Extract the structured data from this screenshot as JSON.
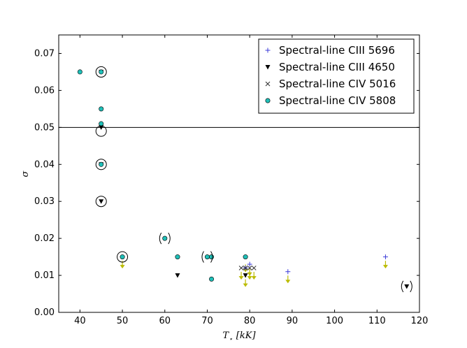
{
  "chart_data": {
    "type": "scatter",
    "xlabel": "T",
    "xlabel_sub": "⋆",
    "xlabel_unit": "[kK]",
    "ylabel": "σ",
    "xlim": [
      35,
      120
    ],
    "ylim": [
      0.0,
      0.075
    ],
    "x_ticks": [
      40,
      50,
      60,
      70,
      80,
      90,
      100,
      110,
      120
    ],
    "y_ticks": [
      0.0,
      0.01,
      0.02,
      0.03,
      0.04,
      0.05,
      0.06,
      0.07
    ],
    "x_tick_labels": [
      "40",
      "50",
      "60",
      "70",
      "80",
      "90",
      "100",
      "110",
      "120"
    ],
    "y_tick_labels": [
      "0.00",
      "0.01",
      "0.02",
      "0.03",
      "0.04",
      "0.05",
      "0.06",
      "0.07"
    ],
    "grid": false,
    "legend_position": "top-right",
    "reference_line": {
      "y": 0.05,
      "color": "#000000"
    },
    "series": [
      {
        "name": "Spectral-line CIII 5696",
        "marker": "plus",
        "color": "#3b3bd8",
        "points": [
          {
            "x": 79,
            "y": 0.012
          },
          {
            "x": 80,
            "y": 0.013
          },
          {
            "x": 89,
            "y": 0.011
          },
          {
            "x": 112,
            "y": 0.015
          }
        ]
      },
      {
        "name": "Spectral-line CIII 4650",
        "marker": "triangle-down",
        "color": "#000000",
        "points": [
          {
            "x": 45,
            "y": 0.065
          },
          {
            "x": 45,
            "y": 0.05
          },
          {
            "x": 45,
            "y": 0.04
          },
          {
            "x": 45,
            "y": 0.03
          },
          {
            "x": 63,
            "y": 0.01
          },
          {
            "x": 79,
            "y": 0.01
          },
          {
            "x": 117,
            "y": 0.007
          }
        ]
      },
      {
        "name": "Spectral-line CIV 5016",
        "marker": "x",
        "color": "#333333",
        "points": [
          {
            "x": 78,
            "y": 0.012
          },
          {
            "x": 79,
            "y": 0.012
          },
          {
            "x": 80,
            "y": 0.012
          },
          {
            "x": 81,
            "y": 0.012
          }
        ]
      },
      {
        "name": "Spectral-line CIV 5808",
        "marker": "circle",
        "color": "#1fbfb8",
        "points": [
          {
            "x": 40,
            "y": 0.065
          },
          {
            "x": 45,
            "y": 0.065
          },
          {
            "x": 45,
            "y": 0.055
          },
          {
            "x": 45,
            "y": 0.051
          },
          {
            "x": 45,
            "y": 0.04
          },
          {
            "x": 50,
            "y": 0.015
          },
          {
            "x": 60,
            "y": 0.02
          },
          {
            "x": 63,
            "y": 0.015
          },
          {
            "x": 70,
            "y": 0.015
          },
          {
            "x": 71,
            "y": 0.015
          },
          {
            "x": 71,
            "y": 0.009
          },
          {
            "x": 79,
            "y": 0.015
          }
        ]
      }
    ],
    "upper_limits": {
      "color": "#bbbb00",
      "points": [
        {
          "x": 50,
          "y": 0.013
        },
        {
          "x": 78,
          "y": 0.01
        },
        {
          "x": 79,
          "y": 0.008
        },
        {
          "x": 79,
          "y": 0.012
        },
        {
          "x": 80,
          "y": 0.01
        },
        {
          "x": 80,
          "y": 0.011
        },
        {
          "x": 81,
          "y": 0.01
        },
        {
          "x": 89,
          "y": 0.009
        },
        {
          "x": 112,
          "y": 0.013
        }
      ]
    },
    "circled_points": [
      {
        "x": 45,
        "y": 0.065
      },
      {
        "x": 45,
        "y": 0.049
      },
      {
        "x": 45,
        "y": 0.04
      },
      {
        "x": 45,
        "y": 0.03
      },
      {
        "x": 50,
        "y": 0.015
      }
    ],
    "parenthesized_points": [
      {
        "x": 60,
        "y": 0.02
      },
      {
        "x": 70,
        "y": 0.015
      },
      {
        "x": 117,
        "y": 0.007
      }
    ]
  }
}
